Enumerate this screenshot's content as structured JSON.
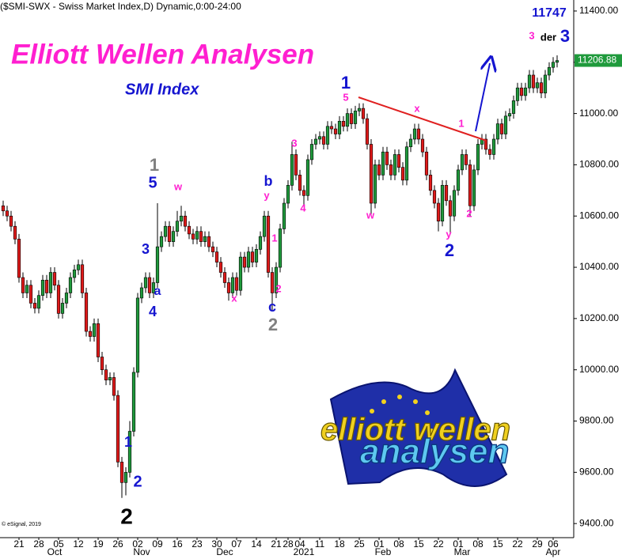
{
  "chart_data": {
    "type": "candlestick",
    "header": "($SMI-SWX - Swiss Market Index,D) Dynamic,0:00-24:00",
    "title": "Elliott Wellen Analysen",
    "subtitle": "SMI Index",
    "credit": "© eSignal, 2019",
    "logo_text": [
      "elliott wellen",
      "analysen"
    ],
    "up_color": "#1f9a3c",
    "down_color": "#e01a1a",
    "ylim": [
      9345,
      11443
    ],
    "yticks": [
      {
        "value": 9400,
        "label": "9400.00"
      },
      {
        "value": 9600,
        "label": "9600.00"
      },
      {
        "value": 9800,
        "label": "9800.00"
      },
      {
        "value": 10000,
        "label": "10000.00"
      },
      {
        "value": 10200,
        "label": "10200.00"
      },
      {
        "value": 10400,
        "label": "10400.00"
      },
      {
        "value": 10600,
        "label": "10600.00"
      },
      {
        "value": 10800,
        "label": "10800.00"
      },
      {
        "value": 11000,
        "label": "11000.00"
      },
      {
        "value": 11200,
        "label": "11200.00"
      },
      {
        "value": 11400,
        "label": "11400.00"
      }
    ],
    "categories": [
      null,
      null,
      null,
      null,
      "21",
      null,
      null,
      null,
      null,
      "28",
      null,
      null,
      null,
      null,
      "05",
      null,
      null,
      null,
      null,
      "12",
      null,
      null,
      null,
      null,
      "19",
      null,
      null,
      null,
      null,
      "26",
      null,
      null,
      null,
      null,
      "02",
      null,
      null,
      null,
      null,
      "09",
      null,
      null,
      null,
      null,
      "16",
      null,
      null,
      null,
      null,
      "23",
      null,
      null,
      null,
      null,
      "30",
      null,
      null,
      null,
      null,
      "07",
      null,
      null,
      null,
      null,
      "14",
      null,
      null,
      null,
      null,
      "21",
      null,
      null,
      "28",
      null,
      null,
      "04",
      null,
      null,
      null,
      null,
      "11",
      null,
      null,
      null,
      null,
      "18",
      null,
      null,
      null,
      null,
      "25",
      null,
      null,
      null,
      null,
      "01",
      null,
      null,
      null,
      null,
      "08",
      null,
      null,
      null,
      null,
      "15",
      null,
      null,
      null,
      null,
      "22",
      null,
      null,
      null,
      null,
      "01",
      null,
      null,
      null,
      null,
      "08",
      null,
      null,
      null,
      null,
      "15",
      null,
      null,
      null,
      null,
      "22",
      null,
      null,
      null,
      null,
      "29",
      null,
      null,
      null,
      "06",
      null
    ],
    "months": [
      null,
      null,
      null,
      null,
      null,
      null,
      null,
      null,
      null,
      null,
      null,
      null,
      null,
      "Oct",
      null,
      null,
      null,
      null,
      null,
      null,
      null,
      null,
      null,
      null,
      null,
      null,
      null,
      null,
      null,
      null,
      null,
      null,
      null,
      null,
      null,
      "Nov",
      null,
      null,
      null,
      null,
      null,
      null,
      null,
      null,
      null,
      null,
      null,
      null,
      null,
      null,
      null,
      null,
      null,
      null,
      null,
      null,
      "Dec",
      null,
      null,
      null,
      null,
      null,
      null,
      null,
      null,
      null,
      null,
      null,
      null,
      null,
      null,
      null,
      null,
      null,
      null,
      null,
      "2021",
      null,
      null,
      null,
      null,
      null,
      null,
      null,
      null,
      null,
      null,
      null,
      null,
      null,
      null,
      null,
      null,
      null,
      null,
      null,
      "Feb",
      null,
      null,
      null,
      null,
      null,
      null,
      null,
      null,
      null,
      null,
      null,
      null,
      null,
      null,
      null,
      null,
      null,
      null,
      null,
      "Mar",
      null,
      null,
      null,
      null,
      null,
      null,
      null,
      null,
      null,
      null,
      null,
      null,
      null,
      null,
      null,
      null,
      null,
      null,
      null,
      null,
      null,
      null,
      "Apr",
      null
    ],
    "open": [
      10640,
      10620,
      10600,
      10560,
      10510,
      10360,
      10300,
      10330,
      10260,
      10240,
      10290,
      10350,
      10300,
      10380,
      10330,
      10220,
      10260,
      10300,
      10360,
      10390,
      10410,
      10300,
      10150,
      10130,
      10180,
      10050,
      10000,
      9960,
      9970,
      9900,
      9640,
      9560,
      9600,
      9760,
      9990,
      10280,
      10320,
      10360,
      10300,
      10340,
      10480,
      10520,
      10560,
      10500,
      10540,
      10580,
      10600,
      10560,
      10530,
      10510,
      10540,
      10500,
      10520,
      10480,
      10460,
      10420,
      10380,
      10340,
      10300,
      10360,
      10310,
      10440,
      10400,
      10460,
      10420,
      10470,
      10520,
      10600,
      10380,
      10300,
      10400,
      10550,
      10650,
      10720,
      10840,
      10760,
      10700,
      10680,
      10820,
      10880,
      10900,
      10910,
      10880,
      10950,
      10940,
      10920,
      10970,
      10950,
      11000,
      10960,
      11010,
      11020,
      10980,
      10880,
      10650,
      10800,
      10760,
      10850,
      10800,
      10760,
      10840,
      10790,
      10740,
      10870,
      10900,
      10940,
      10900,
      10850,
      10760,
      10700,
      10650,
      10580,
      10720,
      10660,
      10600,
      10700,
      10780,
      10840,
      10800,
      10640,
      10780,
      10880,
      10900,
      10860,
      10840,
      10900,
      10960,
      10920,
      10990,
      11000,
      11050,
      11100,
      11070,
      11100,
      11150,
      11100,
      11120,
      11080,
      11150,
      11180,
      11200
    ],
    "high": [
      10660,
      10640,
      10620,
      10580,
      10530,
      10380,
      10350,
      10350,
      10280,
      10310,
      10370,
      10370,
      10400,
      10400,
      10350,
      10280,
      10320,
      10380,
      10410,
      10430,
      10430,
      10320,
      10170,
      10200,
      10200,
      10070,
      10020,
      9990,
      9990,
      9920,
      9660,
      9620,
      9800,
      10010,
      10300,
      10340,
      10380,
      10380,
      10360,
      10650,
      10540,
      10580,
      10580,
      10560,
      10620,
      10640,
      10620,
      10580,
      10550,
      10560,
      10560,
      10540,
      10540,
      10500,
      10480,
      10440,
      10400,
      10360,
      10380,
      10380,
      10460,
      10460,
      10480,
      10480,
      10490,
      10540,
      10620,
      10620,
      10400,
      10420,
      10570,
      10670,
      10740,
      10890,
      10860,
      10780,
      10720,
      10840,
      10900,
      10920,
      10930,
      10930,
      10970,
      10970,
      10960,
      10990,
      10990,
      11020,
      11020,
      11030,
      11040,
      11040,
      11000,
      10900,
      10820,
      10820,
      10870,
      10870,
      10820,
      10860,
      10860,
      10810,
      10890,
      10920,
      10960,
      10960,
      10920,
      10870,
      10780,
      10720,
      10670,
      10740,
      10740,
      10680,
      10720,
      10800,
      10860,
      10860,
      10820,
      10800,
      10900,
      10920,
      10920,
      10880,
      10920,
      10980,
      10980,
      11010,
      11020,
      11070,
      11120,
      11120,
      11120,
      11170,
      11170,
      11140,
      11140,
      11170,
      11200,
      11220,
      11227
    ],
    "low": [
      10600,
      10580,
      10540,
      10490,
      10340,
      10280,
      10280,
      10240,
      10220,
      10220,
      10270,
      10280,
      10280,
      10310,
      10200,
      10200,
      10240,
      10280,
      10340,
      10370,
      10280,
      10130,
      10110,
      10110,
      10030,
      9980,
      9940,
      9940,
      9880,
      9620,
      9500,
      9510,
      9580,
      9740,
      9970,
      10260,
      10300,
      10280,
      10280,
      10320,
      10460,
      10500,
      10480,
      10480,
      10520,
      10560,
      10540,
      10510,
      10490,
      10490,
      10480,
      10480,
      10460,
      10440,
      10400,
      10360,
      10320,
      10270,
      10280,
      10290,
      10290,
      10380,
      10380,
      10400,
      10400,
      10450,
      10500,
      10360,
      10230,
      10280,
      10380,
      10530,
      10630,
      10700,
      10740,
      10680,
      10640,
      10660,
      10800,
      10860,
      10880,
      10860,
      10860,
      10920,
      10900,
      10900,
      10930,
      10930,
      10940,
      10940,
      10990,
      10960,
      10860,
      10600,
      10630,
      10740,
      10740,
      10780,
      10740,
      10740,
      10770,
      10720,
      10720,
      10850,
      10880,
      10880,
      10830,
      10740,
      10680,
      10630,
      10540,
      10560,
      10640,
      10530,
      10580,
      10680,
      10760,
      10780,
      10600,
      10620,
      10760,
      10860,
      10840,
      10820,
      10820,
      10880,
      10900,
      10900,
      10970,
      10980,
      11030,
      11050,
      11050,
      11080,
      11080,
      11080,
      11060,
      11060,
      11130,
      11160,
      11180
    ],
    "close": [
      10620,
      10600,
      10560,
      10510,
      10360,
      10300,
      10330,
      10260,
      10240,
      10290,
      10350,
      10300,
      10380,
      10330,
      10220,
      10260,
      10300,
      10360,
      10390,
      10410,
      10300,
      10150,
      10130,
      10180,
      10050,
      10000,
      9960,
      9970,
      9900,
      9640,
      9560,
      9600,
      9760,
      9990,
      10280,
      10320,
      10360,
      10300,
      10340,
      10480,
      10520,
      10560,
      10500,
      10540,
      10580,
      10600,
      10560,
      10530,
      10510,
      10540,
      10500,
      10520,
      10480,
      10460,
      10420,
      10380,
      10340,
      10300,
      10360,
      10310,
      10440,
      10400,
      10460,
      10420,
      10470,
      10520,
      10600,
      10380,
      10300,
      10400,
      10550,
      10650,
      10720,
      10840,
      10760,
      10700,
      10680,
      10820,
      10880,
      10900,
      10910,
      10880,
      10950,
      10940,
      10920,
      10970,
      10950,
      11000,
      10960,
      11010,
      11020,
      10980,
      10880,
      10650,
      10800,
      10760,
      10850,
      10800,
      10760,
      10840,
      10790,
      10740,
      10870,
      10900,
      10940,
      10900,
      10850,
      10760,
      10700,
      10650,
      10580,
      10720,
      10660,
      10600,
      10700,
      10780,
      10840,
      10800,
      10640,
      10780,
      10880,
      10900,
      10860,
      10840,
      10900,
      10960,
      10920,
      10990,
      11000,
      11050,
      11100,
      11070,
      11100,
      11150,
      11100,
      11120,
      11080,
      11150,
      11180,
      11200,
      11206.88
    ],
    "annotations": [
      {
        "text": "2",
        "color": "#000000"
      },
      {
        "text": "1",
        "color": "#1515d0"
      },
      {
        "text": "2",
        "color": "#1515d0"
      },
      {
        "text": "3",
        "color": "#1515d0"
      },
      {
        "text": "a",
        "color": "#1515d0"
      },
      {
        "text": "4",
        "color": "#1515d0"
      },
      {
        "text": "5",
        "color": "#1515d0"
      },
      {
        "text": "1",
        "color": "#808080"
      },
      {
        "text": "w",
        "color": "#ff1fd0"
      },
      {
        "text": "x",
        "color": "#ff1fd0"
      },
      {
        "text": "b",
        "color": "#1515d0"
      },
      {
        "text": "y",
        "color": "#ff1fd0"
      },
      {
        "text": "1",
        "color": "#ff1fd0"
      },
      {
        "text": "2",
        "color": "#ff1fd0"
      },
      {
        "text": "c",
        "color": "#1515d0"
      },
      {
        "text": "2",
        "color": "#808080"
      },
      {
        "text": "3",
        "color": "#ff1fd0"
      },
      {
        "text": "4",
        "color": "#ff1fd0"
      },
      {
        "text": "5",
        "color": "#ff1fd0"
      },
      {
        "text": "1",
        "color": "#1515d0"
      },
      {
        "text": "x",
        "color": "#ff1fd0"
      },
      {
        "text": "w",
        "color": "#ff1fd0"
      },
      {
        "text": "y",
        "color": "#ff1fd0"
      },
      {
        "text": "2",
        "color": "#1515d0"
      },
      {
        "text": "1",
        "color": "#ff1fd0"
      },
      {
        "text": "2",
        "color": "#ff1fd0"
      },
      {
        "text": "3",
        "color": "#ff1fd0"
      },
      {
        "text": "der",
        "color": "#000000"
      },
      {
        "text": "3",
        "color": "#1515d0"
      },
      {
        "text": "11747",
        "color": "#1515d0"
      }
    ]
  }
}
